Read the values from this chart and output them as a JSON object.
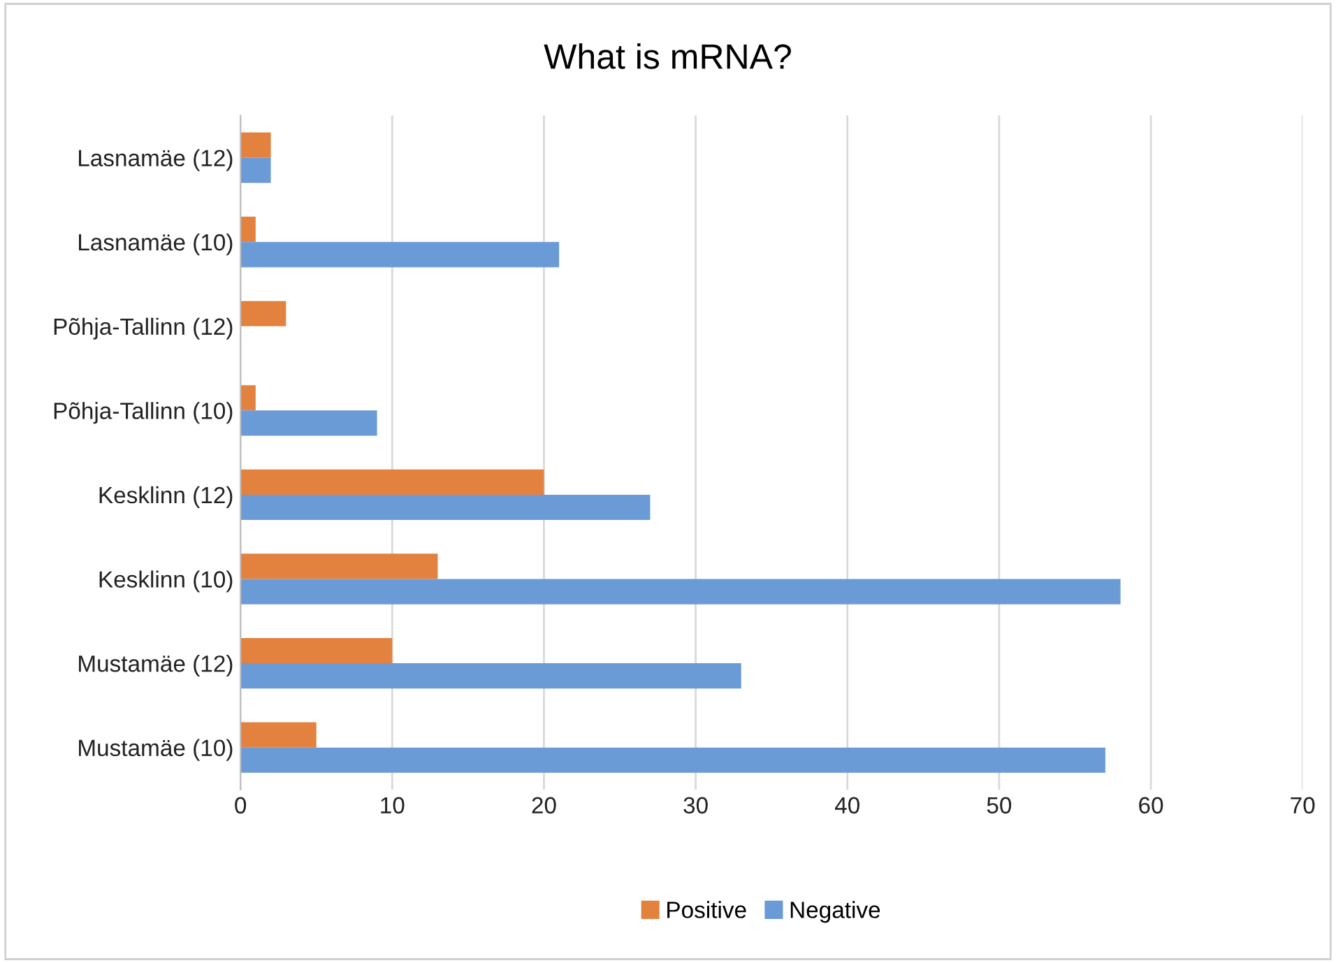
{
  "chart_data": {
    "type": "bar",
    "orientation": "horizontal",
    "title": "What is mRNA?",
    "categories": [
      "Lasnamäe (12)",
      "Lasnamäe (10)",
      "Põhja-Tallinn (12)",
      "Põhja-Tallinn (10)",
      "Kesklinn (12)",
      "Kesklinn (10)",
      "Mustamäe (12)",
      "Mustamäe (10)"
    ],
    "series": [
      {
        "name": "Positive",
        "color": "#e3823f",
        "values": [
          2,
          1,
          3,
          1,
          20,
          13,
          10,
          5
        ]
      },
      {
        "name": "Negative",
        "color": "#6b9bd6",
        "values": [
          2,
          21,
          0,
          9,
          27,
          58,
          33,
          57
        ]
      }
    ],
    "xlim": [
      0,
      70
    ],
    "xticks": [
      0,
      10,
      20,
      30,
      40,
      50,
      60,
      70
    ],
    "grid": "x",
    "legend": "bottom"
  }
}
